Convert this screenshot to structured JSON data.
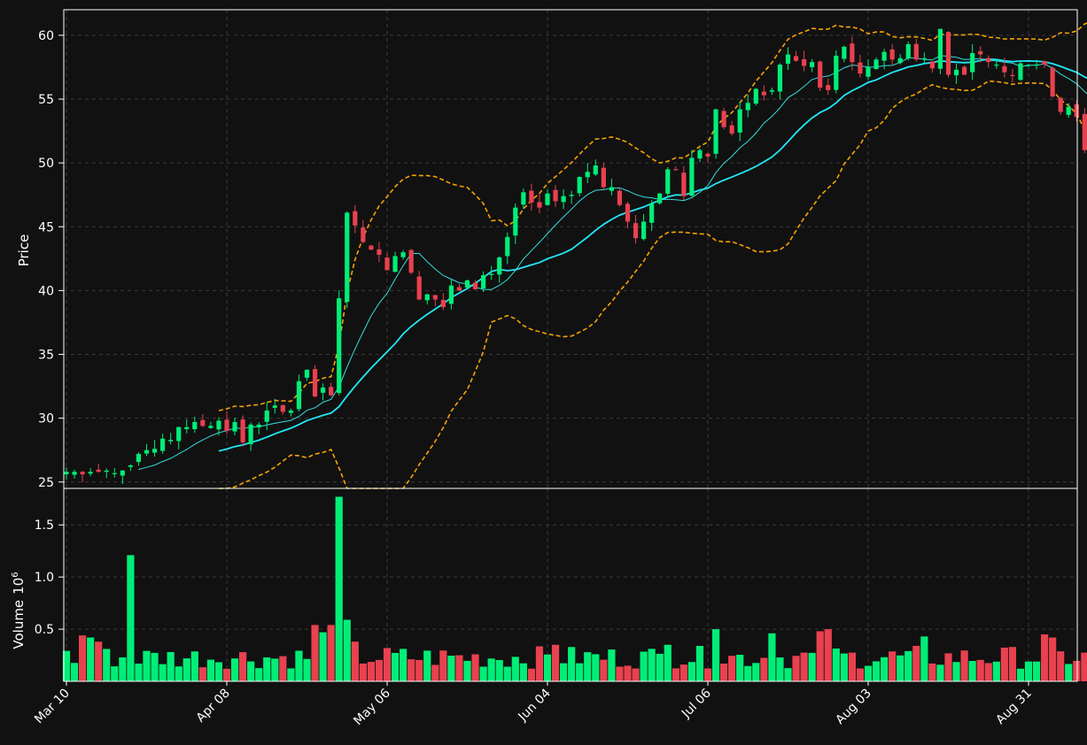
{
  "chart_data": {
    "type": "candlestick",
    "colors": {
      "background": "#111111",
      "up": "#00ee77",
      "down": "#e8414f",
      "ma_fast": "#33dddd",
      "ma_slow": "#22e8f8",
      "bollinger": "#f5a300",
      "grid": "#3a3a3a",
      "axis": "#ffffff"
    },
    "price_panel": {
      "ylabel": "Price",
      "ylim": [
        24.5,
        62.0
      ],
      "yticks": [
        25,
        30,
        35,
        40,
        45,
        50,
        55,
        60
      ]
    },
    "volume_panel": {
      "ylabel": "Volume",
      "multiplier_label": "10",
      "multiplier_exp": "6",
      "ylim": [
        0,
        1.85
      ],
      "yticks": [
        "0.5",
        "1.0",
        "1.5"
      ],
      "ytick_values": [
        0.5,
        1.0,
        1.5
      ]
    },
    "x_ticks": [
      {
        "index": 0,
        "label": "Mar 10"
      },
      {
        "index": 20,
        "label": "Apr 08"
      },
      {
        "index": 40,
        "label": "May 06"
      },
      {
        "index": 60,
        "label": "Jun 04"
      },
      {
        "index": 80,
        "label": "Jul 06"
      },
      {
        "index": 100,
        "label": "Aug 03"
      },
      {
        "index": 120,
        "label": "Aug 31"
      }
    ],
    "closes": [
      25.8,
      25.8,
      25.6,
      25.8,
      25.8,
      25.9,
      25.7,
      25.9,
      26.3,
      27.2,
      27.5,
      27.6,
      28.4,
      28.3,
      29.3,
      29.3,
      29.7,
      29.4,
      29.4,
      29.8,
      29.0,
      29.7,
      28.1,
      29.5,
      29.5,
      30.6,
      31.0,
      30.5,
      30.6,
      32.9,
      33.8,
      31.7,
      32.4,
      31.8,
      39.4,
      46.1,
      45.1,
      43.8,
      43.2,
      42.8,
      41.6,
      42.7,
      43.0,
      41.4,
      39.3,
      39.7,
      39.3,
      38.7,
      40.4,
      40.0,
      40.8,
      40.1,
      41.2,
      41.3,
      42.6,
      44.2,
      46.5,
      47.7,
      46.9,
      46.5,
      47.6,
      47.0,
      47.4,
      47.5,
      48.9,
      49.3,
      49.8,
      48.1,
      48.1,
      46.7,
      45.4,
      44.1,
      45.4,
      46.8,
      47.6,
      49.5,
      49.5,
      47.4,
      50.4,
      51.0,
      50.5,
      54.2,
      52.8,
      52.3,
      54.2,
      54.7,
      55.8,
      55.3,
      55.7,
      57.7,
      58.5,
      58.0,
      57.6,
      57.9,
      55.9,
      55.7,
      58.4,
      59.1,
      57.9,
      57.0,
      57.5,
      58.1,
      58.7,
      58.1,
      58.2,
      59.3,
      58.1,
      58.2,
      57.4,
      60.5,
      56.9,
      57.3,
      56.9,
      58.6,
      58.5,
      57.9,
      57.7,
      57.1,
      56.8,
      57.8,
      57.7,
      57.7,
      57.7,
      55.2,
      54.0,
      54.4,
      53.6,
      51.0,
      51.5
    ]
  }
}
